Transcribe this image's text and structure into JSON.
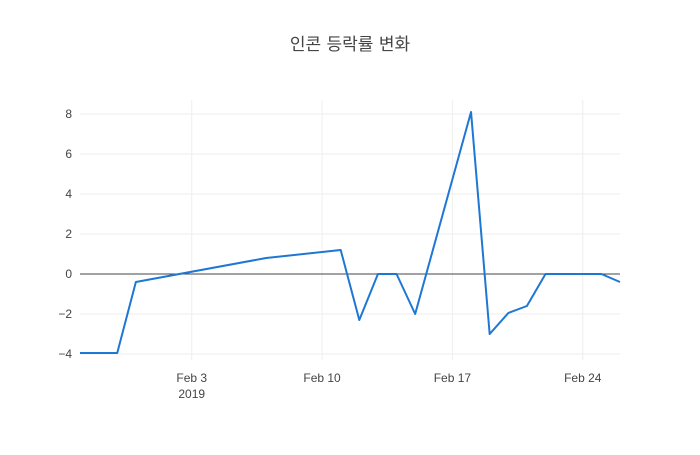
{
  "chart_data": {
    "type": "line",
    "title": "인콘 등락률 변화",
    "xlabel": "",
    "ylabel": "",
    "x_tick_labels": [
      {
        "date": "2019-02-03",
        "label": "Feb 3",
        "sublabel": "2019"
      },
      {
        "date": "2019-02-10",
        "label": "Feb 10",
        "sublabel": ""
      },
      {
        "date": "2019-02-17",
        "label": "Feb 17",
        "sublabel": ""
      },
      {
        "date": "2019-02-24",
        "label": "Feb 24",
        "sublabel": ""
      }
    ],
    "y_ticks": [
      -4,
      -2,
      0,
      2,
      4,
      6,
      8
    ],
    "xlim": [
      "2019-01-28",
      "2019-02-26"
    ],
    "ylim": [
      -4.3,
      8.7
    ],
    "grid": true,
    "zero_line": true,
    "line_color": "#1f77d4",
    "series": [
      {
        "x": [
          "2019-01-28",
          "2019-01-29",
          "2019-01-30",
          "2019-01-31",
          "2019-02-07",
          "2019-02-11",
          "2019-02-12",
          "2019-02-13",
          "2019-02-14",
          "2019-02-15",
          "2019-02-18",
          "2019-02-19",
          "2019-02-20",
          "2019-02-21",
          "2019-02-22",
          "2019-02-25",
          "2019-02-26"
        ],
        "y": [
          -3.95,
          -3.95,
          -3.95,
          -0.4,
          0.8,
          1.2,
          -2.3,
          0,
          0,
          -2.0,
          8.1,
          -3.0,
          -1.95,
          -1.6,
          0,
          0,
          -0.4
        ]
      }
    ]
  }
}
